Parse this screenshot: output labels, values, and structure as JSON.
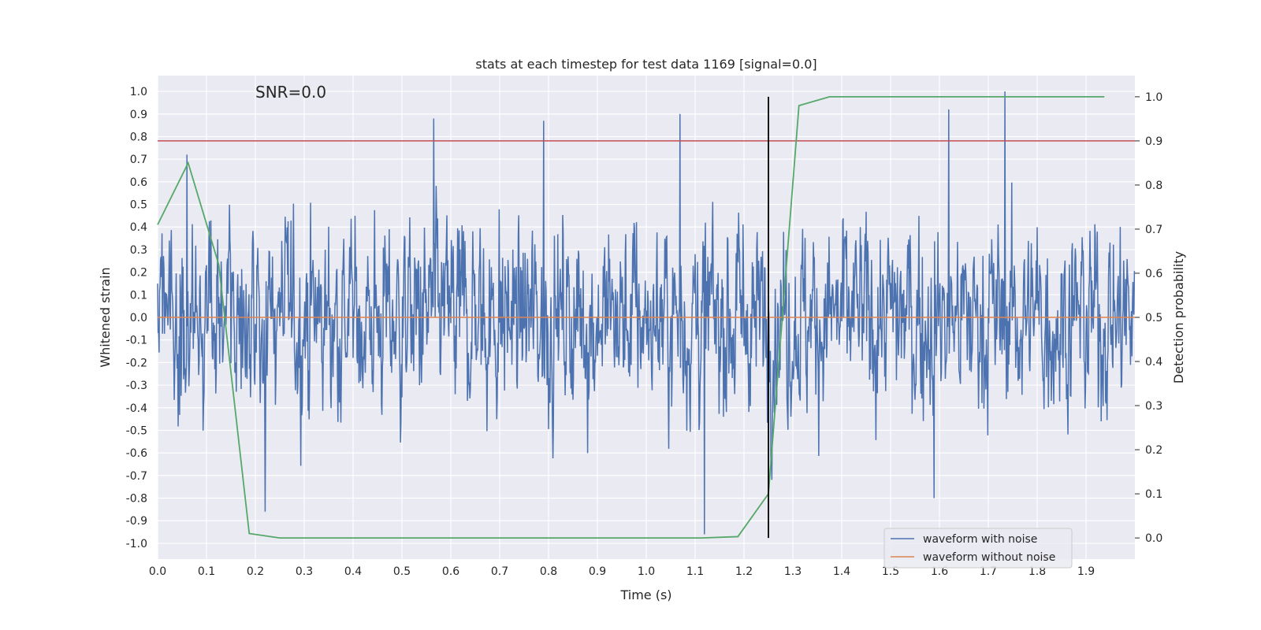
{
  "chart_data": {
    "type": "line",
    "title": "stats at each timestep for test data 1169 [signal=0.0]",
    "xlabel": "Time (s)",
    "ylabel_left": "Whitened strain",
    "ylabel_right": "Detection probability",
    "annotation": "SNR=0.0",
    "xlim": [
      0.0,
      2.0
    ],
    "ylim_left": [
      -1.07,
      1.07
    ],
    "ylim_right": [
      -0.048,
      1.048
    ],
    "x_ticks": [
      "0.0",
      "0.1",
      "0.2",
      "0.3",
      "0.4",
      "0.5",
      "0.6",
      "0.7",
      "0.8",
      "0.9",
      "1.0",
      "1.1",
      "1.2",
      "1.3",
      "1.4",
      "1.5",
      "1.6",
      "1.7",
      "1.8",
      "1.9"
    ],
    "y_ticks_left": [
      "1.0",
      "0.9",
      "0.8",
      "0.7",
      "0.6",
      "0.5",
      "0.4",
      "0.3",
      "0.2",
      "0.1",
      "0.0",
      "-0.1",
      "-0.2",
      "-0.3",
      "-0.4",
      "-0.5",
      "-0.6",
      "-0.7",
      "-0.8",
      "-0.9",
      "-1.0"
    ],
    "y_ticks_right": [
      "1.0",
      "0.9",
      "0.8",
      "0.7",
      "0.6",
      "0.5",
      "0.4",
      "0.3",
      "0.2",
      "0.1",
      "0.0"
    ],
    "grid": true,
    "legend_position": "bottom-right",
    "legend": [
      "waveform with noise",
      "waveform without noise"
    ],
    "colors": {
      "noisy": "#4c72b0",
      "clean": "#dd8452",
      "probability": "#55a868",
      "threshold": "#c44e52",
      "marker": "#000000",
      "background": "#eaeaf2",
      "grid": "#ffffff"
    },
    "series": [
      {
        "name": "waveform with noise",
        "axis": "left",
        "generated": true,
        "points": 2000,
        "x_range": [
          0.0,
          2.0
        ],
        "approx_range": [
          -0.96,
          1.0
        ],
        "notable_peaks": [
          {
            "x": 0.06,
            "y": 0.72
          },
          {
            "x": 0.565,
            "y": 0.88
          },
          {
            "x": 0.79,
            "y": 0.87
          },
          {
            "x": 1.07,
            "y": 0.9
          },
          {
            "x": 1.62,
            "y": 0.92
          },
          {
            "x": 1.735,
            "y": 1.0
          },
          {
            "x": 0.22,
            "y": -0.86
          },
          {
            "x": 1.12,
            "y": -0.96
          },
          {
            "x": 1.59,
            "y": -0.8
          }
        ]
      },
      {
        "name": "waveform without noise",
        "axis": "left",
        "x": [
          0.0,
          2.0
        ],
        "values": [
          0.0,
          0.0
        ]
      },
      {
        "name": "detection probability",
        "axis": "right",
        "x": [
          0.0,
          0.0625,
          0.125,
          0.1875,
          0.25,
          0.3125,
          0.375,
          0.4375,
          0.5,
          0.5625,
          0.625,
          0.6875,
          0.75,
          0.8125,
          0.875,
          0.9375,
          1.0,
          1.0625,
          1.1125,
          1.1875,
          1.25,
          1.3125,
          1.375,
          1.4375,
          1.5,
          1.5625,
          1.625,
          1.6875,
          1.75,
          1.8125,
          1.875,
          1.9375
        ],
        "values": [
          0.71,
          0.85,
          0.62,
          0.01,
          0.0,
          0.0,
          0.0,
          0.0,
          0.0,
          0.0,
          0.0,
          0.0,
          0.0,
          0.0,
          0.0,
          0.0,
          0.0,
          0.0,
          0.0,
          0.003,
          0.1,
          0.98,
          1.0,
          1.0,
          1.0,
          1.0,
          1.0,
          1.0,
          1.0,
          1.0,
          1.0,
          1.0
        ]
      }
    ],
    "hlines": [
      {
        "name": "threshold",
        "axis": "right",
        "y": 0.9
      }
    ],
    "vlines": [
      {
        "name": "event-marker",
        "x": 1.25,
        "y_range_right": [
          0.0,
          1.0
        ]
      }
    ]
  }
}
